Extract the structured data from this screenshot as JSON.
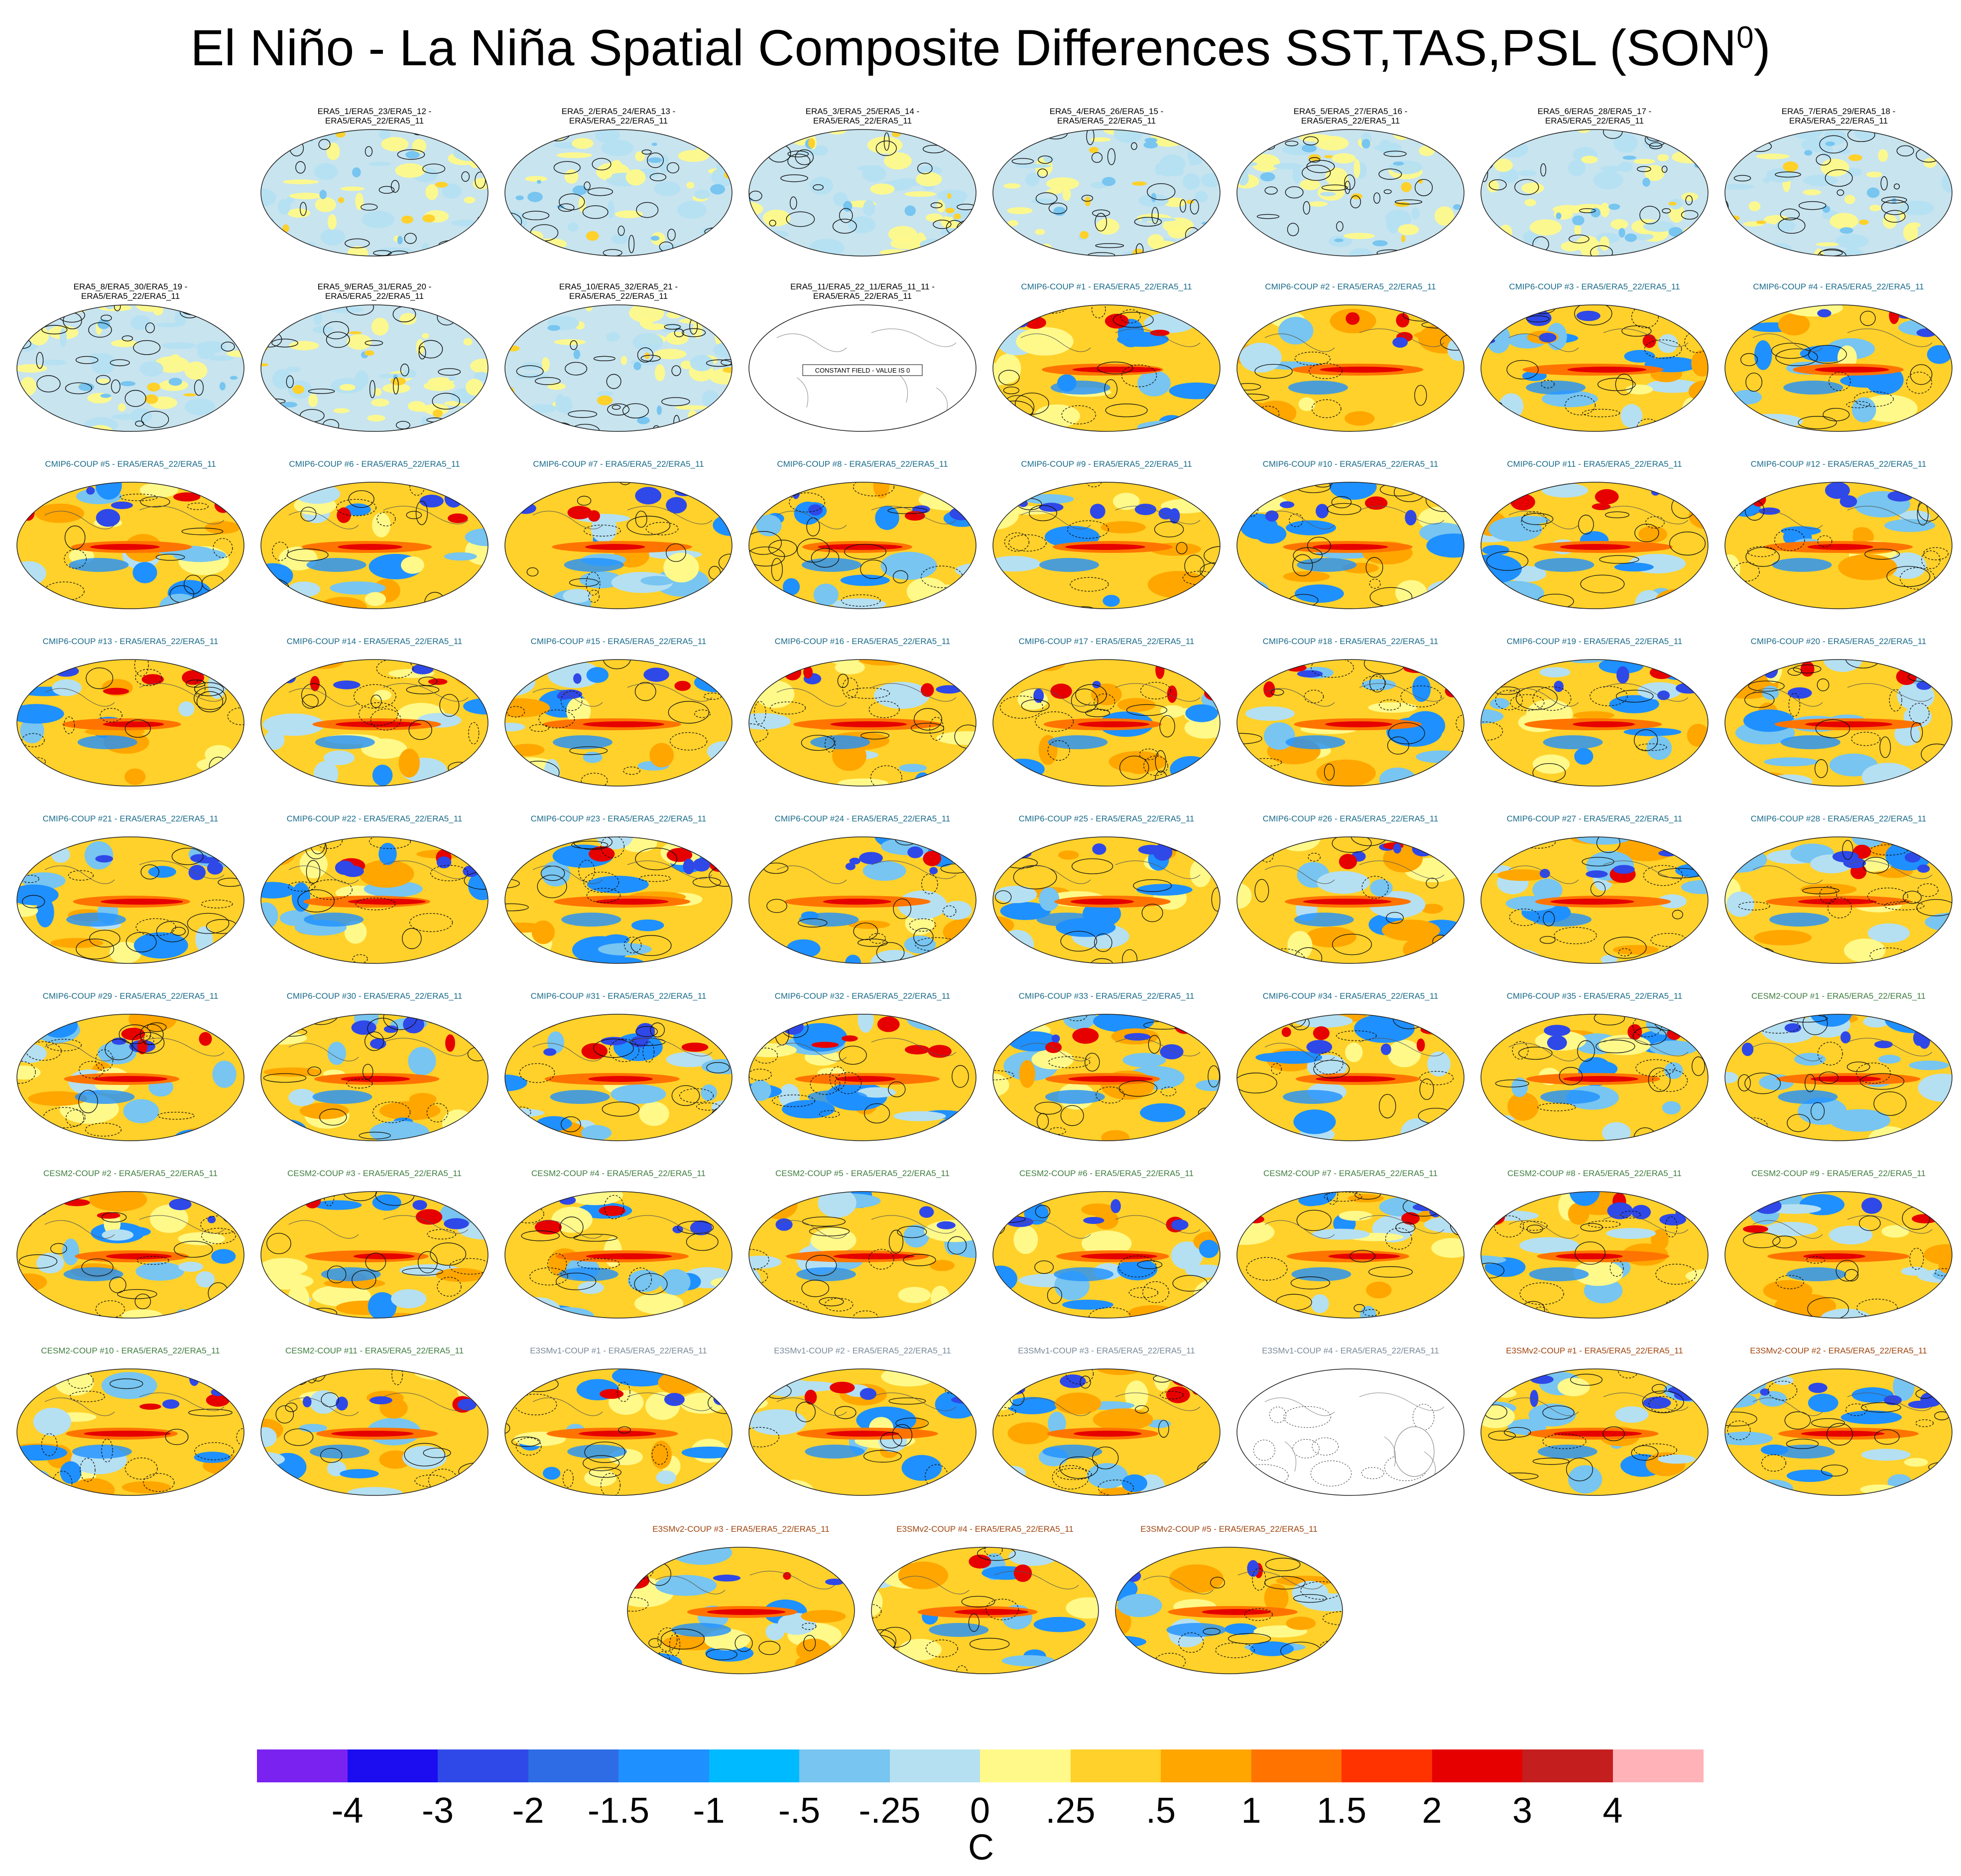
{
  "title": "El Niño - La Niña Spatial Composite Differences SST,TAS,PSL (SON",
  "title_sup": "0",
  "title_close": ")",
  "group_colors": {
    "ERA5": "#000000",
    "CMIP6": "#1a6b8a",
    "CESM2": "#3f7d3f",
    "E3SMv1": "#7a8a99",
    "E3SMv2": "#a0450f"
  },
  "panels": [
    {
      "label": "ERA5_1/ERA5_23/ERA5_12 -\nERA5/ERA5_22/ERA5_11",
      "group": "ERA5",
      "style": "noisy"
    },
    {
      "label": "ERA5_2/ERA5_24/ERA5_13 -\nERA5/ERA5_22/ERA5_11",
      "group": "ERA5",
      "style": "noisy"
    },
    {
      "label": "ERA5_3/ERA5_25/ERA5_14 -\nERA5/ERA5_22/ERA5_11",
      "group": "ERA5",
      "style": "noisy"
    },
    {
      "label": "ERA5_4/ERA5_26/ERA5_15 -\nERA5/ERA5_22/ERA5_11",
      "group": "ERA5",
      "style": "noisy"
    },
    {
      "label": "ERA5_5/ERA5_27/ERA5_16 -\nERA5/ERA5_22/ERA5_11",
      "group": "ERA5",
      "style": "noisy"
    },
    {
      "label": "ERA5_6/ERA5_28/ERA5_17 -\nERA5/ERA5_22/ERA5_11",
      "group": "ERA5",
      "style": "noisy"
    },
    {
      "label": "ERA5_7/ERA5_29/ERA5_18 -\nERA5/ERA5_22/ERA5_11",
      "group": "ERA5",
      "style": "noisy"
    },
    {
      "label": "ERA5_8/ERA5_30/ERA5_19 -\nERA5/ERA5_22/ERA5_11",
      "group": "ERA5",
      "style": "noisy"
    },
    {
      "label": "ERA5_9/ERA5_31/ERA5_20 -\nERA5/ERA5_22/ERA5_11",
      "group": "ERA5",
      "style": "noisy"
    },
    {
      "label": "ERA5_10/ERA5_32/ERA5_21 -\nERA5/ERA5_22/ERA5_11",
      "group": "ERA5",
      "style": "noisy"
    },
    {
      "label": "ERA5_11/ERA5_22_11/ERA5_11_11 -\nERA5/ERA5_22/ERA5_11",
      "group": "ERA5",
      "style": "blank",
      "note": "CONSTANT FIELD - VALUE IS 0"
    },
    {
      "label": "CMIP6-COUP  #1 - ERA5/ERA5_22/ERA5_11",
      "group": "CMIP6",
      "style": "model"
    },
    {
      "label": "CMIP6-COUP  #2 - ERA5/ERA5_22/ERA5_11",
      "group": "CMIP6",
      "style": "model"
    },
    {
      "label": "CMIP6-COUP  #3 - ERA5/ERA5_22/ERA5_11",
      "group": "CMIP6",
      "style": "model"
    },
    {
      "label": "CMIP6-COUP  #4 - ERA5/ERA5_22/ERA5_11",
      "group": "CMIP6",
      "style": "model"
    },
    {
      "label": "CMIP6-COUP  #5 - ERA5/ERA5_22/ERA5_11",
      "group": "CMIP6",
      "style": "model"
    },
    {
      "label": "CMIP6-COUP  #6 - ERA5/ERA5_22/ERA5_11",
      "group": "CMIP6",
      "style": "model"
    },
    {
      "label": "CMIP6-COUP  #7 - ERA5/ERA5_22/ERA5_11",
      "group": "CMIP6",
      "style": "model"
    },
    {
      "label": "CMIP6-COUP  #8 - ERA5/ERA5_22/ERA5_11",
      "group": "CMIP6",
      "style": "model"
    },
    {
      "label": "CMIP6-COUP  #9 - ERA5/ERA5_22/ERA5_11",
      "group": "CMIP6",
      "style": "model"
    },
    {
      "label": "CMIP6-COUP  #10 - ERA5/ERA5_22/ERA5_11",
      "group": "CMIP6",
      "style": "model"
    },
    {
      "label": "CMIP6-COUP  #11 - ERA5/ERA5_22/ERA5_11",
      "group": "CMIP6",
      "style": "model"
    },
    {
      "label": "CMIP6-COUP  #12 - ERA5/ERA5_22/ERA5_11",
      "group": "CMIP6",
      "style": "model"
    },
    {
      "label": "CMIP6-COUP  #13 - ERA5/ERA5_22/ERA5_11",
      "group": "CMIP6",
      "style": "model"
    },
    {
      "label": "CMIP6-COUP  #14 - ERA5/ERA5_22/ERA5_11",
      "group": "CMIP6",
      "style": "model"
    },
    {
      "label": "CMIP6-COUP  #15 - ERA5/ERA5_22/ERA5_11",
      "group": "CMIP6",
      "style": "model"
    },
    {
      "label": "CMIP6-COUP  #16 - ERA5/ERA5_22/ERA5_11",
      "group": "CMIP6",
      "style": "model"
    },
    {
      "label": "CMIP6-COUP  #17 - ERA5/ERA5_22/ERA5_11",
      "group": "CMIP6",
      "style": "model"
    },
    {
      "label": "CMIP6-COUP  #18 - ERA5/ERA5_22/ERA5_11",
      "group": "CMIP6",
      "style": "model"
    },
    {
      "label": "CMIP6-COUP  #19 - ERA5/ERA5_22/ERA5_11",
      "group": "CMIP6",
      "style": "model"
    },
    {
      "label": "CMIP6-COUP  #20 - ERA5/ERA5_22/ERA5_11",
      "group": "CMIP6",
      "style": "model"
    },
    {
      "label": "CMIP6-COUP  #21 - ERA5/ERA5_22/ERA5_11",
      "group": "CMIP6",
      "style": "model"
    },
    {
      "label": "CMIP6-COUP  #22 - ERA5/ERA5_22/ERA5_11",
      "group": "CMIP6",
      "style": "model"
    },
    {
      "label": "CMIP6-COUP  #23 - ERA5/ERA5_22/ERA5_11",
      "group": "CMIP6",
      "style": "model"
    },
    {
      "label": "CMIP6-COUP  #24 - ERA5/ERA5_22/ERA5_11",
      "group": "CMIP6",
      "style": "model"
    },
    {
      "label": "CMIP6-COUP  #25 - ERA5/ERA5_22/ERA5_11",
      "group": "CMIP6",
      "style": "model"
    },
    {
      "label": "CMIP6-COUP  #26 - ERA5/ERA5_22/ERA5_11",
      "group": "CMIP6",
      "style": "model"
    },
    {
      "label": "CMIP6-COUP  #27 - ERA5/ERA5_22/ERA5_11",
      "group": "CMIP6",
      "style": "model"
    },
    {
      "label": "CMIP6-COUP  #28 - ERA5/ERA5_22/ERA5_11",
      "group": "CMIP6",
      "style": "model"
    },
    {
      "label": "CMIP6-COUP  #29 - ERA5/ERA5_22/ERA5_11",
      "group": "CMIP6",
      "style": "model"
    },
    {
      "label": "CMIP6-COUP  #30 - ERA5/ERA5_22/ERA5_11",
      "group": "CMIP6",
      "style": "model"
    },
    {
      "label": "CMIP6-COUP  #31 - ERA5/ERA5_22/ERA5_11",
      "group": "CMIP6",
      "style": "model"
    },
    {
      "label": "CMIP6-COUP  #32 - ERA5/ERA5_22/ERA5_11",
      "group": "CMIP6",
      "style": "model"
    },
    {
      "label": "CMIP6-COUP  #33 - ERA5/ERA5_22/ERA5_11",
      "group": "CMIP6",
      "style": "model"
    },
    {
      "label": "CMIP6-COUP  #34 - ERA5/ERA5_22/ERA5_11",
      "group": "CMIP6",
      "style": "model"
    },
    {
      "label": "CMIP6-COUP  #35 - ERA5/ERA5_22/ERA5_11",
      "group": "CMIP6",
      "style": "model"
    },
    {
      "label": "CESM2-COUP  #1 - ERA5/ERA5_22/ERA5_11",
      "group": "CESM2",
      "style": "model"
    },
    {
      "label": "CESM2-COUP  #2 - ERA5/ERA5_22/ERA5_11",
      "group": "CESM2",
      "style": "model"
    },
    {
      "label": "CESM2-COUP  #3 - ERA5/ERA5_22/ERA5_11",
      "group": "CESM2",
      "style": "model"
    },
    {
      "label": "CESM2-COUP  #4 - ERA5/ERA5_22/ERA5_11",
      "group": "CESM2",
      "style": "model"
    },
    {
      "label": "CESM2-COUP  #5 - ERA5/ERA5_22/ERA5_11",
      "group": "CESM2",
      "style": "model"
    },
    {
      "label": "CESM2-COUP  #6 - ERA5/ERA5_22/ERA5_11",
      "group": "CESM2",
      "style": "model"
    },
    {
      "label": "CESM2-COUP  #7 - ERA5/ERA5_22/ERA5_11",
      "group": "CESM2",
      "style": "model"
    },
    {
      "label": "CESM2-COUP  #8 - ERA5/ERA5_22/ERA5_11",
      "group": "CESM2",
      "style": "model"
    },
    {
      "label": "CESM2-COUP  #9 - ERA5/ERA5_22/ERA5_11",
      "group": "CESM2",
      "style": "model"
    },
    {
      "label": "CESM2-COUP  #10 - ERA5/ERA5_22/ERA5_11",
      "group": "CESM2",
      "style": "model"
    },
    {
      "label": "CESM2-COUP  #11 - ERA5/ERA5_22/ERA5_11",
      "group": "CESM2",
      "style": "model"
    },
    {
      "label": "E3SMv1-COUP #1 - ERA5/ERA5_22/ERA5_11",
      "group": "E3SMv1",
      "style": "model"
    },
    {
      "label": "E3SMv1-COUP #2 - ERA5/ERA5_22/ERA5_11",
      "group": "E3SMv1",
      "style": "model"
    },
    {
      "label": "E3SMv1-COUP #3 - ERA5/ERA5_22/ERA5_11",
      "group": "E3SMv1",
      "style": "model"
    },
    {
      "label": "E3SMv1-COUP #4 - ERA5/ERA5_22/ERA5_11",
      "group": "E3SMv1",
      "style": "sparse"
    },
    {
      "label": "E3SMv2-COUP #1 - ERA5/ERA5_22/ERA5_11",
      "group": "E3SMv2",
      "style": "model"
    },
    {
      "label": "E3SMv2-COUP #2 - ERA5/ERA5_22/ERA5_11",
      "group": "E3SMv2",
      "style": "model"
    },
    {
      "label": "E3SMv2-COUP #3 - ERA5/ERA5_22/ERA5_11",
      "group": "E3SMv2",
      "style": "model"
    },
    {
      "label": "E3SMv2-COUP #4 - ERA5/ERA5_22/ERA5_11",
      "group": "E3SMv2",
      "style": "model"
    },
    {
      "label": "E3SMv2-COUP #5 - ERA5/ERA5_22/ERA5_11",
      "group": "E3SMv2",
      "style": "model"
    }
  ],
  "colorbar": {
    "colors": [
      "#7a22f0",
      "#1b0df0",
      "#2f48e8",
      "#2e6ce6",
      "#1f90ff",
      "#00baff",
      "#77c5f0",
      "#b5e0f2",
      "#fff98a",
      "#ffd12a",
      "#ffa600",
      "#ff7400",
      "#ff3300",
      "#e60000",
      "#c51e1e",
      "#ffb3b9"
    ],
    "labels": [
      "-4",
      "-3",
      "-2",
      "-1.5",
      "-1",
      "-.5",
      "-.25",
      "0",
      ".25",
      ".5",
      "1",
      "1.5",
      "2",
      "3",
      "4"
    ],
    "unit": "C"
  }
}
